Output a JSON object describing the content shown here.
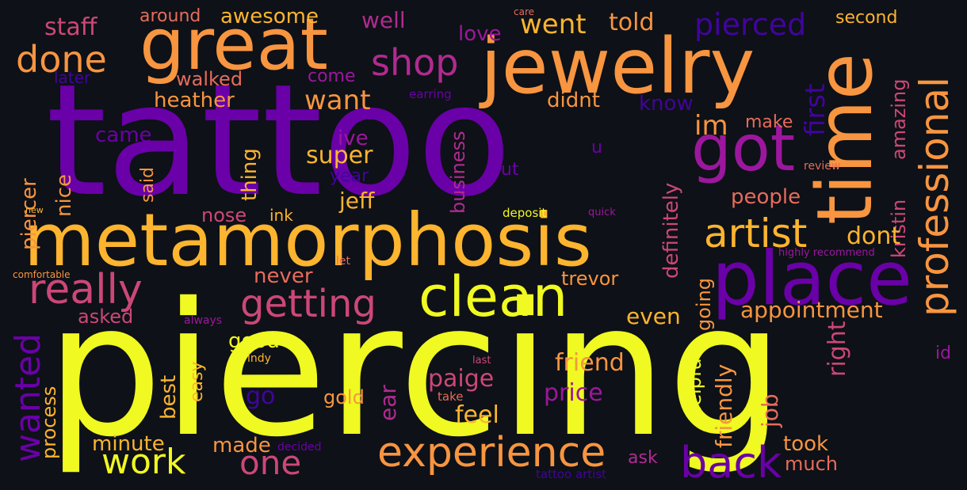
{
  "colors": {
    "background": "#0e1117",
    "yellow": "#f0f921",
    "gold": "#fdb42f",
    "orange": "#f89540",
    "salmon": "#e66c5c",
    "pink": "#cc4778",
    "magenta": "#b12a90",
    "violet": "#9c179e",
    "purple": "#6a00a8",
    "indigo": "#41049d",
    "navy": "#2c0594"
  },
  "words": [
    "tattoo",
    "piercing",
    "metamorphosis",
    "jewelry",
    "great",
    "time",
    "got",
    "place",
    "clean",
    "professional",
    "artist",
    "experience",
    "back",
    "getting",
    "really",
    "shop",
    "done",
    "work",
    "one",
    "wanted",
    "pierced",
    "went",
    "told",
    "love",
    "well",
    "staff",
    "around",
    "awesome",
    "care",
    "second",
    "later",
    "walked",
    "come",
    "earring",
    "im",
    "first",
    "amazing",
    "heather",
    "want",
    "didnt",
    "know",
    "make",
    "kristin",
    "came",
    "ive",
    "u",
    "piercer",
    "nice",
    "said",
    "thing",
    "super",
    "year",
    "put",
    "business",
    "definitely",
    "review",
    "jeff",
    "people",
    "nose",
    "ink",
    "new",
    "deposit",
    "quick",
    "dont",
    "let",
    "highly recommend",
    "comfortable",
    "never",
    "trevor",
    "going",
    "appointment",
    "asked",
    "always",
    "even",
    "good",
    "right",
    "id",
    "indy",
    "last",
    "friend",
    "helpful",
    "friendly",
    "paige",
    "process",
    "best",
    "easy",
    "go",
    "gold",
    "ear",
    "price",
    "take",
    "feel",
    "job",
    "minute",
    "made",
    "decided",
    "took",
    "ask",
    "much",
    "tattoo artist"
  ]
}
